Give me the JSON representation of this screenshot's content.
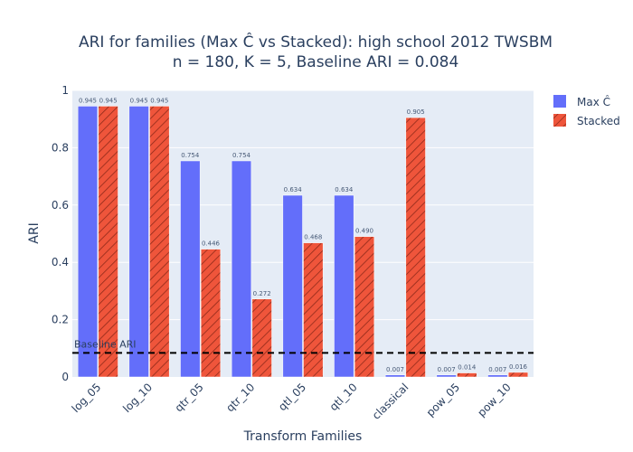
{
  "chart_data": {
    "type": "bar",
    "title_lines": [
      "ARI for families (Max Ĉ vs Stacked): high school 2012 TWSBM",
      "n = 180, K = 5, Baseline ARI = 0.084"
    ],
    "xlabel": "Transform Families",
    "ylabel": "ARI",
    "ylim": [
      0,
      1
    ],
    "yticks": [
      "0",
      "0.2",
      "0.4",
      "0.6",
      "0.8",
      "1"
    ],
    "categories": [
      "log_05",
      "log_10",
      "qtr_05",
      "qtr_10",
      "qtl_05",
      "qtl_10",
      "classical",
      "pow_05",
      "pow_10"
    ],
    "series": [
      {
        "name": "Max Ĉ",
        "color": "#636efa",
        "pattern": "none",
        "values": [
          0.945,
          0.945,
          0.754,
          0.754,
          0.634,
          0.634,
          0.007,
          0.007,
          0.007
        ],
        "labels": [
          "0.945",
          "0.945",
          "0.754",
          "0.754",
          "0.634",
          "0.634",
          "0.007",
          "0.007",
          "0.007"
        ]
      },
      {
        "name": "Stacked",
        "color": "#ef553b",
        "pattern": "diagonal-hatch",
        "values": [
          0.945,
          0.945,
          0.446,
          0.272,
          0.468,
          0.49,
          0.905,
          0.014,
          0.016
        ],
        "labels": [
          "0.945",
          "0.945",
          "0.446",
          "0.272",
          "0.468",
          "0.490",
          "0.905",
          "0.014",
          "0.016"
        ]
      }
    ],
    "baseline": {
      "value": 0.084,
      "label": "Baseline ARI",
      "style": "dashed",
      "color": "#000000"
    },
    "legend_position": "top-right",
    "plot_background": "#e5ecf6",
    "grid": true
  }
}
